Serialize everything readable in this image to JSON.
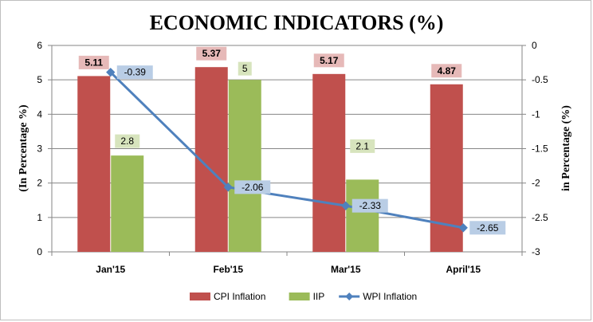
{
  "chart_data": {
    "type": "bar",
    "title": "ECONOMIC INDICATORS (%)",
    "categories": [
      "Jan'15",
      "Feb'15",
      "Mar'15",
      "April'15"
    ],
    "ylabel": "(In Percentage %)",
    "ylabel_right": "in Percentage (%)",
    "ylim": [
      0,
      6
    ],
    "yticks": [
      "0",
      "1",
      "2",
      "3",
      "4",
      "5",
      "6"
    ],
    "y2lim": [
      -3,
      0
    ],
    "y2ticks": [
      "0",
      "-0.5",
      "-1",
      "-1.5",
      "-2",
      "-2.5",
      "-3"
    ],
    "grid": true,
    "legend_position": "bottom",
    "series": [
      {
        "name": "CPI Inflation",
        "kind": "bar",
        "axis": "left",
        "color": "#c0504d",
        "label_bg": "#e6b9b8",
        "values": [
          5.11,
          5.37,
          5.17,
          4.87
        ],
        "labels": [
          "5.11",
          "5.37",
          "5.17",
          "4.87"
        ]
      },
      {
        "name": "IIP",
        "kind": "bar",
        "axis": "left",
        "color": "#9bbb59",
        "label_bg": "#d7e4bd",
        "values": [
          2.8,
          5,
          2.1,
          null
        ],
        "labels": [
          "2.8",
          "5",
          "2.1",
          ""
        ]
      },
      {
        "name": "WPI Inflation",
        "kind": "line",
        "axis": "right",
        "color": "#4f81bd",
        "label_bg": "#b9cde5",
        "values": [
          -0.39,
          -2.06,
          -2.33,
          -2.65
        ],
        "labels": [
          "-0.39",
          "-2.06",
          "-2.33",
          "-2.65"
        ]
      }
    ]
  }
}
